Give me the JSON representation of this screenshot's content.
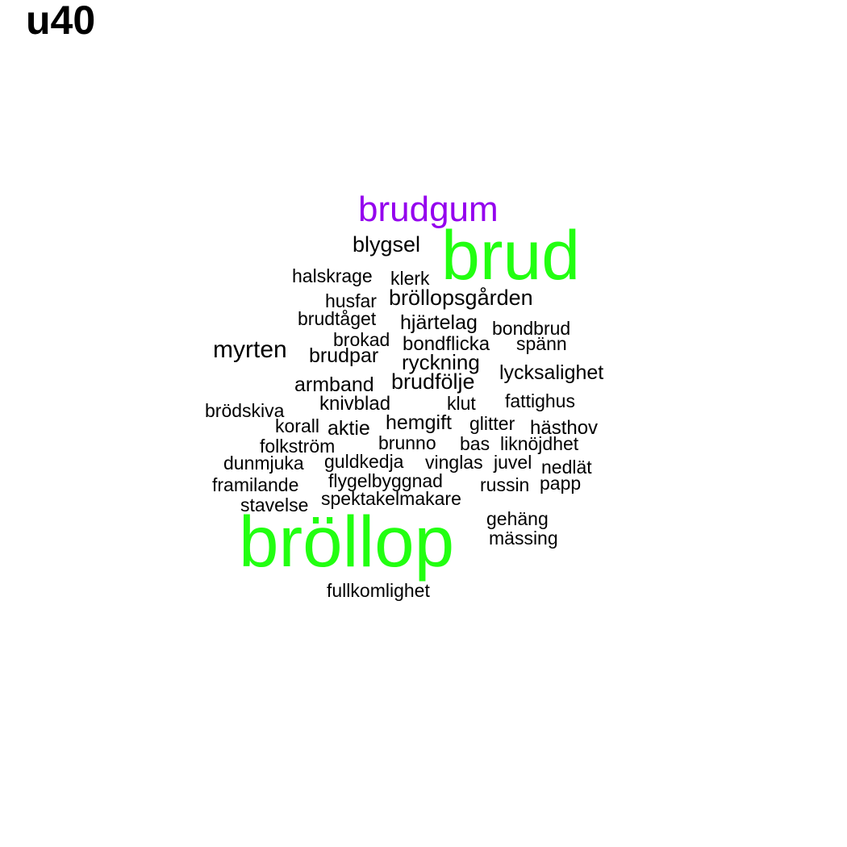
{
  "title": "u40",
  "colors": {
    "default": "#000000",
    "highlight_green": "#22ff11",
    "highlight_purple": "#9400ee"
  },
  "words": [
    {
      "text": "brudgum",
      "weight": 2,
      "color": "#9400ee"
    },
    {
      "text": "brud",
      "weight": 3,
      "color": "#22ff11"
    },
    {
      "text": "blygsel",
      "weight": 1,
      "color": "#000000"
    },
    {
      "text": "halskrage",
      "weight": 1,
      "color": "#000000"
    },
    {
      "text": "klerk",
      "weight": 1,
      "color": "#000000"
    },
    {
      "text": "husfar",
      "weight": 1,
      "color": "#000000"
    },
    {
      "text": "bröllopsgården",
      "weight": 1,
      "color": "#000000"
    },
    {
      "text": "brudtåget",
      "weight": 1,
      "color": "#000000"
    },
    {
      "text": "hjärtelag",
      "weight": 1,
      "color": "#000000"
    },
    {
      "text": "bondbrud",
      "weight": 1,
      "color": "#000000"
    },
    {
      "text": "brokad",
      "weight": 1,
      "color": "#000000"
    },
    {
      "text": "bondflicka",
      "weight": 1,
      "color": "#000000"
    },
    {
      "text": "spänn",
      "weight": 1,
      "color": "#000000"
    },
    {
      "text": "myrten",
      "weight": 1,
      "color": "#000000"
    },
    {
      "text": "brudpar",
      "weight": 1,
      "color": "#000000"
    },
    {
      "text": "ryckning",
      "weight": 1,
      "color": "#000000"
    },
    {
      "text": "lycksalighet",
      "weight": 1,
      "color": "#000000"
    },
    {
      "text": "armband",
      "weight": 1,
      "color": "#000000"
    },
    {
      "text": "brudfölje",
      "weight": 1,
      "color": "#000000"
    },
    {
      "text": "knivblad",
      "weight": 1,
      "color": "#000000"
    },
    {
      "text": "klut",
      "weight": 1,
      "color": "#000000"
    },
    {
      "text": "fattighus",
      "weight": 1,
      "color": "#000000"
    },
    {
      "text": "brödskiva",
      "weight": 1,
      "color": "#000000"
    },
    {
      "text": "korall",
      "weight": 1,
      "color": "#000000"
    },
    {
      "text": "aktie",
      "weight": 1,
      "color": "#000000"
    },
    {
      "text": "hemgift",
      "weight": 1,
      "color": "#000000"
    },
    {
      "text": "glitter",
      "weight": 1,
      "color": "#000000"
    },
    {
      "text": "hästhov",
      "weight": 1,
      "color": "#000000"
    },
    {
      "text": "folkström",
      "weight": 1,
      "color": "#000000"
    },
    {
      "text": "brunno",
      "weight": 1,
      "color": "#000000"
    },
    {
      "text": "bas",
      "weight": 1,
      "color": "#000000"
    },
    {
      "text": "liknöjdhet",
      "weight": 1,
      "color": "#000000"
    },
    {
      "text": "dunmjuka",
      "weight": 1,
      "color": "#000000"
    },
    {
      "text": "guldkedja",
      "weight": 1,
      "color": "#000000"
    },
    {
      "text": "vinglas",
      "weight": 1,
      "color": "#000000"
    },
    {
      "text": "juvel",
      "weight": 1,
      "color": "#000000"
    },
    {
      "text": "nedlät",
      "weight": 1,
      "color": "#000000"
    },
    {
      "text": "framilande",
      "weight": 1,
      "color": "#000000"
    },
    {
      "text": "flygelbyggnad",
      "weight": 1,
      "color": "#000000"
    },
    {
      "text": "russin",
      "weight": 1,
      "color": "#000000"
    },
    {
      "text": "papp",
      "weight": 1,
      "color": "#000000"
    },
    {
      "text": "stavelse",
      "weight": 1,
      "color": "#000000"
    },
    {
      "text": "spektakelmakare",
      "weight": 1,
      "color": "#000000"
    },
    {
      "text": "gehäng",
      "weight": 1,
      "color": "#000000"
    },
    {
      "text": "mässing",
      "weight": 1,
      "color": "#000000"
    },
    {
      "text": "bröllop",
      "weight": 3,
      "color": "#22ff11"
    },
    {
      "text": "fullkomlighet",
      "weight": 1,
      "color": "#000000"
    }
  ]
}
